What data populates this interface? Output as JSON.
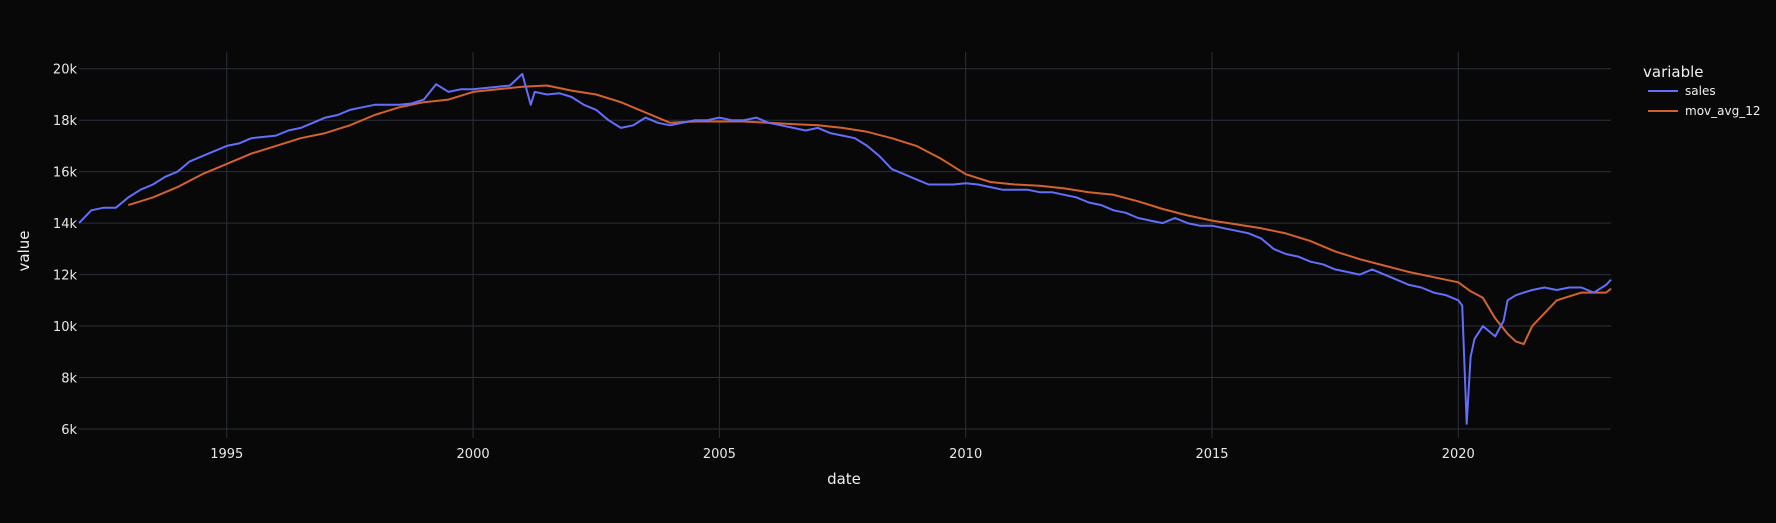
{
  "chart_data": {
    "type": "line",
    "xlabel": "date",
    "ylabel": "value",
    "x_ticks": [
      "1995",
      "2000",
      "2005",
      "2010",
      "2015",
      "2020"
    ],
    "y_ticks": [
      "6k",
      "8k",
      "10k",
      "12k",
      "14k",
      "16k",
      "18k",
      "20k"
    ],
    "xlim": [
      1992.0,
      2023.1
    ],
    "ylim": [
      5650,
      20650
    ],
    "grid": true,
    "legend": {
      "title": "variable",
      "placement": "top-right"
    },
    "colors": {
      "sales": "#636efa",
      "mov_avg_12": "#d4622f",
      "background": "#080808",
      "grid": "#2a2f3a"
    },
    "series": [
      {
        "name": "sales",
        "x": [
          1992.0,
          1992.25,
          1992.5,
          1992.75,
          1993.0,
          1993.25,
          1993.5,
          1993.75,
          1994.0,
          1994.25,
          1994.5,
          1994.75,
          1995.0,
          1995.25,
          1995.5,
          1995.75,
          1996.0,
          1996.25,
          1996.5,
          1996.75,
          1997.0,
          1997.25,
          1997.5,
          1997.75,
          1998.0,
          1998.25,
          1998.5,
          1998.75,
          1999.0,
          1999.25,
          1999.5,
          1999.75,
          2000.0,
          2000.25,
          2000.5,
          2000.75,
          2001.0,
          2001.17,
          2001.25,
          2001.5,
          2001.75,
          2002.0,
          2002.25,
          2002.5,
          2002.75,
          2003.0,
          2003.25,
          2003.5,
          2003.75,
          2004.0,
          2004.25,
          2004.5,
          2004.75,
          2005.0,
          2005.25,
          2005.5,
          2005.75,
          2006.0,
          2006.25,
          2006.5,
          2006.75,
          2007.0,
          2007.25,
          2007.5,
          2007.75,
          2008.0,
          2008.25,
          2008.5,
          2008.75,
          2009.0,
          2009.25,
          2009.5,
          2009.75,
          2010.0,
          2010.25,
          2010.5,
          2010.75,
          2011.0,
          2011.25,
          2011.5,
          2011.75,
          2012.0,
          2012.25,
          2012.5,
          2012.75,
          2013.0,
          2013.25,
          2013.5,
          2013.75,
          2014.0,
          2014.25,
          2014.5,
          2014.75,
          2015.0,
          2015.25,
          2015.5,
          2015.75,
          2016.0,
          2016.25,
          2016.5,
          2016.75,
          2017.0,
          2017.25,
          2017.5,
          2017.75,
          2018.0,
          2018.25,
          2018.5,
          2018.75,
          2019.0,
          2019.25,
          2019.5,
          2019.75,
          2020.0,
          2020.08,
          2020.17,
          2020.25,
          2020.33,
          2020.5,
          2020.75,
          2020.92,
          2021.0,
          2021.17,
          2021.33,
          2021.5,
          2021.75,
          2022.0,
          2022.25,
          2022.5,
          2022.75,
          2023.0,
          2023.1
        ],
        "values": [
          14000,
          14500,
          14600,
          14600,
          15000,
          15300,
          15500,
          15800,
          16000,
          16400,
          16600,
          16800,
          17000,
          17100,
          17300,
          17350,
          17400,
          17600,
          17700,
          17900,
          18100,
          18200,
          18400,
          18500,
          18600,
          18600,
          18600,
          18650,
          18800,
          19400,
          19100,
          19200,
          19200,
          19250,
          19300,
          19350,
          19800,
          18600,
          19100,
          19000,
          19050,
          18900,
          18600,
          18400,
          18000,
          17700,
          17800,
          18100,
          17900,
          17800,
          17900,
          18000,
          18000,
          18100,
          18000,
          18000,
          18100,
          17900,
          17800,
          17700,
          17600,
          17700,
          17500,
          17400,
          17300,
          17000,
          16600,
          16100,
          15900,
          15700,
          15500,
          15500,
          15500,
          15550,
          15500,
          15400,
          15300,
          15300,
          15300,
          15200,
          15200,
          15100,
          15000,
          14800,
          14700,
          14500,
          14400,
          14200,
          14100,
          14000,
          14200,
          14000,
          13900,
          13900,
          13800,
          13700,
          13600,
          13400,
          13000,
          12800,
          12700,
          12500,
          12400,
          12200,
          12100,
          12000,
          12200,
          12000,
          11800,
          11600,
          11500,
          11300,
          11200,
          11000,
          10800,
          6200,
          8800,
          9500,
          10000,
          9600,
          10200,
          11000,
          11200,
          11300,
          11400,
          11500,
          11400,
          11500,
          11500,
          11300,
          11600,
          11800
        ]
      },
      {
        "name": "mov_avg_12",
        "x": [
          1993.0,
          1993.5,
          1994.0,
          1994.5,
          1995.0,
          1995.5,
          1996.0,
          1996.5,
          1997.0,
          1997.5,
          1998.0,
          1998.5,
          1999.0,
          1999.5,
          2000.0,
          2000.5,
          2001.0,
          2001.5,
          2002.0,
          2002.5,
          2003.0,
          2003.5,
          2004.0,
          2004.5,
          2005.0,
          2005.5,
          2006.0,
          2006.5,
          2007.0,
          2007.5,
          2008.0,
          2008.5,
          2009.0,
          2009.5,
          2010.0,
          2010.5,
          2011.0,
          2011.5,
          2012.0,
          2012.5,
          2013.0,
          2013.5,
          2014.0,
          2014.5,
          2015.0,
          2015.5,
          2016.0,
          2016.5,
          2017.0,
          2017.5,
          2018.0,
          2018.5,
          2019.0,
          2019.5,
          2020.0,
          2020.25,
          2020.5,
          2020.75,
          2021.0,
          2021.17,
          2021.33,
          2021.5,
          2021.75,
          2022.0,
          2022.5,
          2023.0,
          2023.1
        ],
        "values": [
          14700,
          15000,
          15400,
          15900,
          16300,
          16700,
          17000,
          17300,
          17500,
          17800,
          18200,
          18500,
          18700,
          18800,
          19100,
          19200,
          19300,
          19350,
          19150,
          19000,
          18700,
          18300,
          17900,
          17950,
          17950,
          17950,
          17900,
          17850,
          17800,
          17700,
          17550,
          17300,
          17000,
          16500,
          15900,
          15600,
          15500,
          15450,
          15350,
          15200,
          15100,
          14850,
          14550,
          14300,
          14100,
          13950,
          13800,
          13600,
          13300,
          12900,
          12600,
          12350,
          12100,
          11900,
          11700,
          11350,
          11100,
          10300,
          9700,
          9400,
          9300,
          10000,
          10500,
          11000,
          11300,
          11300,
          11450
        ]
      }
    ]
  }
}
